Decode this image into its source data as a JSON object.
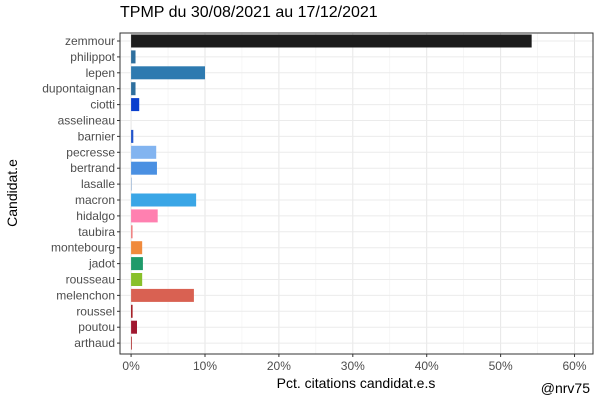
{
  "chart_data": {
    "type": "bar",
    "orientation": "horizontal",
    "title": "TPMP du 30/08/2021 au 17/12/2021",
    "xlabel": "Pct. citations candidat.e.s",
    "ylabel": "Candidat.e",
    "caption": "@nrv75",
    "xlim": [
      -1.5,
      62.5
    ],
    "xticks": [
      0,
      10,
      20,
      30,
      40,
      50,
      60
    ],
    "xtick_labels": [
      "0%",
      "10%",
      "20%",
      "30%",
      "40%",
      "50%",
      "60%"
    ],
    "grid": true,
    "categories": [
      "zemmour",
      "philippot",
      "lepen",
      "dupontaignan",
      "ciotti",
      "asselineau",
      "barnier",
      "pecresse",
      "bertrand",
      "lasalle",
      "macron",
      "hidalgo",
      "taubira",
      "montebourg",
      "jadot",
      "rousseau",
      "melenchon",
      "roussel",
      "poutou",
      "arthaud"
    ],
    "values": [
      54.2,
      0.6,
      10.0,
      0.6,
      1.1,
      0.0,
      0.3,
      3.4,
      3.5,
      0.1,
      8.8,
      3.6,
      0.2,
      1.5,
      1.6,
      1.5,
      8.5,
      0.2,
      0.8,
      0.1
    ],
    "colors": [
      "#1c1c1c",
      "#2e6f9e",
      "#2e7ab0",
      "#2e6f9e",
      "#0a3fce",
      "#ffffff",
      "#2255cc",
      "#82b4f0",
      "#4a90e2",
      "#9eb8d8",
      "#3aa6e6",
      "#ff80b0",
      "#f07c7c",
      "#f08a3c",
      "#1f9a6a",
      "#88c02a",
      "#d96152",
      "#a01018",
      "#a01830",
      "#aa1e1e"
    ]
  }
}
